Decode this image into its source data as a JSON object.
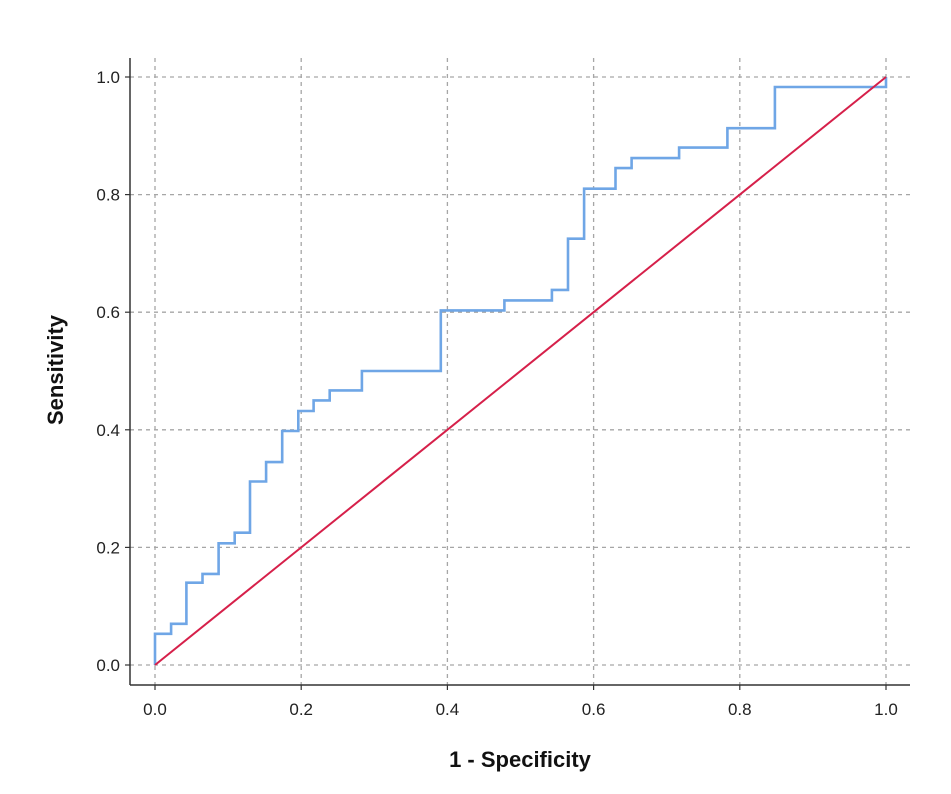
{
  "chart_data": {
    "type": "line",
    "title": "",
    "xlabel": "1 - Specificity",
    "ylabel": "Sensitivity",
    "xlim": [
      0.0,
      1.0
    ],
    "ylim": [
      0.0,
      1.0
    ],
    "x_ticks": [
      "0.0",
      "0.2",
      "0.4",
      "0.6",
      "0.8",
      "1.0"
    ],
    "y_ticks": [
      "0.0",
      "0.2",
      "0.4",
      "0.6",
      "0.8",
      "1.0"
    ],
    "grid": true,
    "series": [
      {
        "name": "",
        "style": "step",
        "color": "#6fa6e6",
        "points": [
          [
            0.0,
            0.0
          ],
          [
            0.0,
            0.053
          ],
          [
            0.022,
            0.053
          ],
          [
            0.022,
            0.07
          ],
          [
            0.043,
            0.07
          ],
          [
            0.043,
            0.14
          ],
          [
            0.065,
            0.14
          ],
          [
            0.065,
            0.155
          ],
          [
            0.087,
            0.155
          ],
          [
            0.087,
            0.207
          ],
          [
            0.109,
            0.207
          ],
          [
            0.109,
            0.225
          ],
          [
            0.13,
            0.225
          ],
          [
            0.13,
            0.312
          ],
          [
            0.152,
            0.312
          ],
          [
            0.152,
            0.345
          ],
          [
            0.174,
            0.345
          ],
          [
            0.174,
            0.398
          ],
          [
            0.196,
            0.398
          ],
          [
            0.196,
            0.432
          ],
          [
            0.217,
            0.432
          ],
          [
            0.217,
            0.45
          ],
          [
            0.239,
            0.45
          ],
          [
            0.239,
            0.467
          ],
          [
            0.283,
            0.467
          ],
          [
            0.283,
            0.5
          ],
          [
            0.391,
            0.5
          ],
          [
            0.391,
            0.603
          ],
          [
            0.478,
            0.603
          ],
          [
            0.478,
            0.62
          ],
          [
            0.543,
            0.62
          ],
          [
            0.543,
            0.638
          ],
          [
            0.565,
            0.638
          ],
          [
            0.565,
            0.725
          ],
          [
            0.587,
            0.725
          ],
          [
            0.587,
            0.81
          ],
          [
            0.63,
            0.81
          ],
          [
            0.63,
            0.845
          ],
          [
            0.652,
            0.845
          ],
          [
            0.652,
            0.862
          ],
          [
            0.717,
            0.862
          ],
          [
            0.717,
            0.88
          ],
          [
            0.783,
            0.88
          ],
          [
            0.783,
            0.913
          ],
          [
            0.848,
            0.913
          ],
          [
            0.848,
            0.983
          ],
          [
            1.0,
            0.983
          ],
          [
            1.0,
            1.0
          ]
        ]
      },
      {
        "name": "",
        "style": "line",
        "color": "#d6204a",
        "points": [
          [
            0.0,
            0.0
          ],
          [
            1.0,
            1.0
          ]
        ]
      }
    ]
  }
}
